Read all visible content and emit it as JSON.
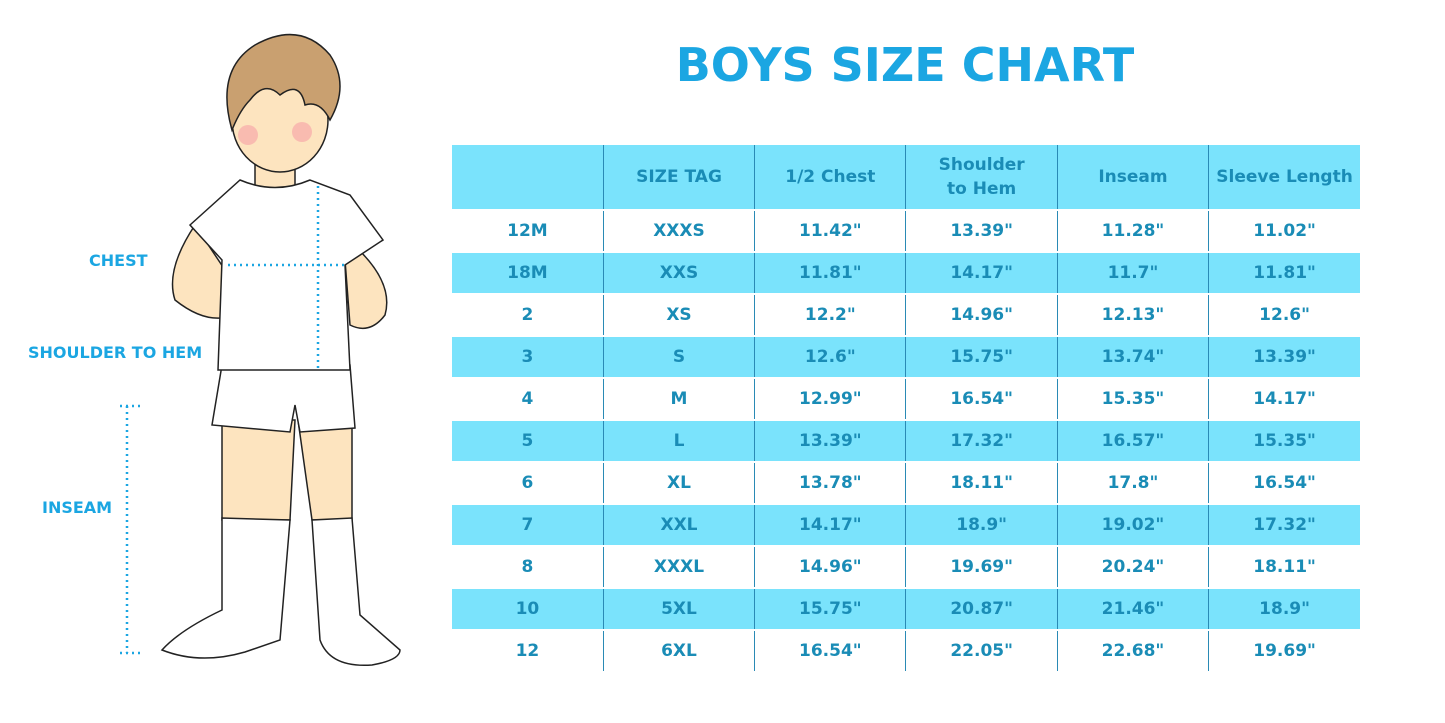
{
  "title": "BOYS SIZE CHART",
  "labels": {
    "chest": "CHEST",
    "shoulder_to_hem": "SHOULDER TO HEM",
    "inseam": "INSEAM"
  },
  "colors": {
    "accent": "#1ba6e2",
    "row_band": "#7ae3fc",
    "text": "#1a8cb6"
  },
  "chart_data": {
    "type": "table",
    "title": "BOYS SIZE CHART",
    "columns": [
      "",
      "SIZE TAG",
      "1/2 Chest",
      "Shoulder to Hem",
      "Inseam",
      "Sleeve Length"
    ],
    "rows": [
      [
        "12M",
        "XXXS",
        "11.42\"",
        "13.39\"",
        "11.28\"",
        "11.02\""
      ],
      [
        "18M",
        "XXS",
        "11.81\"",
        "14.17\"",
        "11.7\"",
        "11.81\""
      ],
      [
        "2",
        "XS",
        "12.2\"",
        "14.96\"",
        "12.13\"",
        "12.6\""
      ],
      [
        "3",
        "S",
        "12.6\"",
        "15.75\"",
        "13.74\"",
        "13.39\""
      ],
      [
        "4",
        "M",
        "12.99\"",
        "16.54\"",
        "15.35\"",
        "14.17\""
      ],
      [
        "5",
        "L",
        "13.39\"",
        "17.32\"",
        "16.57\"",
        "15.35\""
      ],
      [
        "6",
        "XL",
        "13.78\"",
        "18.11\"",
        "17.8\"",
        "16.54\""
      ],
      [
        "7",
        "XXL",
        "14.17\"",
        "18.9\"",
        "19.02\"",
        "17.32\""
      ],
      [
        "8",
        "XXXL",
        "14.96\"",
        "19.69\"",
        "20.24\"",
        "18.11\""
      ],
      [
        "10",
        "5XL",
        "15.75\"",
        "20.87\"",
        "21.46\"",
        "18.9\""
      ],
      [
        "12",
        "6XL",
        "16.54\"",
        "22.05\"",
        "22.68\"",
        "19.69\""
      ]
    ]
  }
}
